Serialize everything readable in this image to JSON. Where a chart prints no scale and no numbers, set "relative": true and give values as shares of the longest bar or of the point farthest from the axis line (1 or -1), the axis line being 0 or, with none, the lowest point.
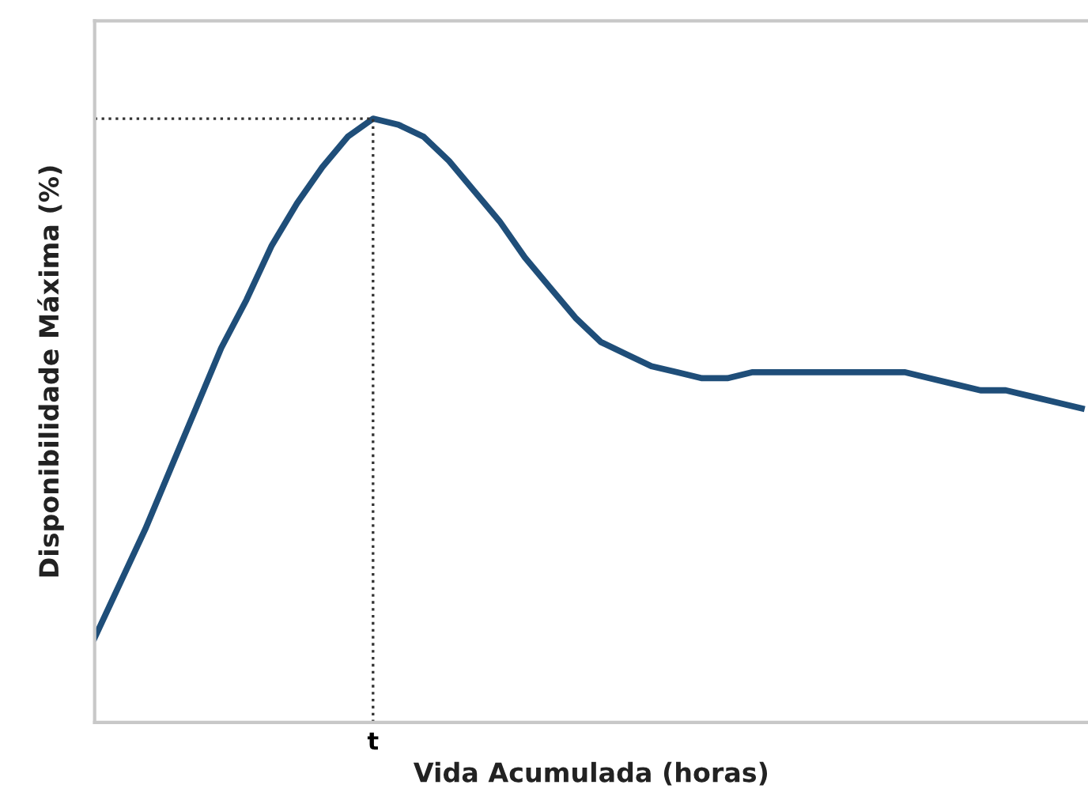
{
  "chart_data": {
    "type": "line",
    "relative": true,
    "xlabel": "Vida Acumulada (horas)",
    "ylabel": "Disponibilidade Máxima (%)",
    "categories": [
      null,
      null,
      null,
      null,
      null,
      null,
      null,
      null,
      null,
      null,
      null,
      null,
      null,
      null,
      null,
      null,
      null,
      null,
      null,
      null,
      null,
      null,
      null,
      null,
      null,
      null,
      null,
      null,
      null,
      null,
      null,
      null,
      null,
      null,
      null,
      null,
      null,
      null,
      null,
      null
    ],
    "series": [
      {
        "color": "#1f4e79",
        "values": [
          0.14,
          0.23,
          0.32,
          0.42,
          0.52,
          0.62,
          0.7,
          0.79,
          0.86,
          0.92,
          0.97,
          1,
          0.99,
          0.97,
          0.93,
          0.88,
          0.83,
          0.77,
          0.72,
          0.67,
          0.63,
          0.61,
          0.59,
          0.58,
          0.57,
          0.57,
          0.58,
          0.58,
          0.58,
          0.58,
          0.58,
          0.58,
          0.58,
          0.57,
          0.56,
          0.55,
          0.55,
          0.54,
          0.53,
          0.52
        ]
      }
    ],
    "ref_lines": [
      {
        "axis": "y",
        "value": 1,
        "line_style": "dotted",
        "color": "#333333"
      }
    ],
    "annotations": [
      "t"
    ],
    "marker": "none",
    "line_style": "solid"
  }
}
